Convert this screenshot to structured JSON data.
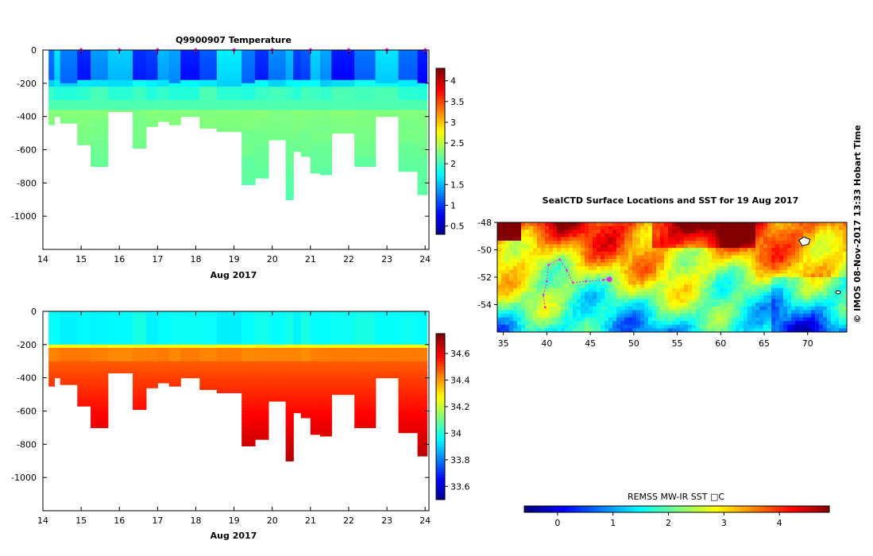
{
  "credit": "© IMOS 08-Nov-2017 13:33 Hobart Time",
  "colors": {
    "profile_marker": "#e030e0",
    "track": "#e030e0",
    "frame": "#000000",
    "background": "#ffffff"
  },
  "chart_data": [
    {
      "id": "temperature",
      "type": "heatmap",
      "title": "Q9900907  Temperature",
      "xlabel": "Aug 2017",
      "ylabel": "",
      "x_ticks": [
        "14",
        "15",
        "16",
        "17",
        "18",
        "19",
        "20",
        "21",
        "22",
        "23",
        "24"
      ],
      "y_ticks": [
        "0",
        "-200",
        "-400",
        "-600",
        "-800",
        "-1000"
      ],
      "xlim": [
        14,
        24.1
      ],
      "ylim": [
        -1200,
        0
      ],
      "profile_markers_x": [
        15,
        16,
        17,
        18,
        19,
        20,
        21,
        22,
        23,
        24
      ],
      "colorbar": {
        "ticks": [
          "0.5",
          "1",
          "1.5",
          "2",
          "2.5",
          "3",
          "3.5",
          "4"
        ],
        "range": [
          0.3,
          4.3
        ]
      },
      "profiles": [
        {
          "x0": 14.15,
          "x1": 14.3,
          "depth": 450
        },
        {
          "x0": 14.3,
          "x1": 14.45,
          "depth": 400
        },
        {
          "x0": 14.45,
          "x1": 14.9,
          "depth": 440
        },
        {
          "x0": 14.9,
          "x1": 15.25,
          "depth": 570
        },
        {
          "x0": 15.25,
          "x1": 15.7,
          "depth": 700
        },
        {
          "x0": 15.7,
          "x1": 16.35,
          "depth": 370
        },
        {
          "x0": 16.35,
          "x1": 16.7,
          "depth": 590
        },
        {
          "x0": 16.7,
          "x1": 17.0,
          "depth": 460
        },
        {
          "x0": 17.0,
          "x1": 17.3,
          "depth": 430
        },
        {
          "x0": 17.3,
          "x1": 17.6,
          "depth": 450
        },
        {
          "x0": 17.6,
          "x1": 18.1,
          "depth": 400
        },
        {
          "x0": 18.1,
          "x1": 18.55,
          "depth": 470
        },
        {
          "x0": 18.55,
          "x1": 19.2,
          "depth": 490
        },
        {
          "x0": 19.2,
          "x1": 19.55,
          "depth": 810
        },
        {
          "x0": 19.55,
          "x1": 19.9,
          "depth": 770
        },
        {
          "x0": 19.9,
          "x1": 20.35,
          "depth": 540
        },
        {
          "x0": 20.35,
          "x1": 20.55,
          "depth": 900
        },
        {
          "x0": 20.55,
          "x1": 20.75,
          "depth": 610
        },
        {
          "x0": 20.75,
          "x1": 21.0,
          "depth": 640
        },
        {
          "x0": 21.0,
          "x1": 21.25,
          "depth": 740
        },
        {
          "x0": 21.25,
          "x1": 21.55,
          "depth": 750
        },
        {
          "x0": 21.55,
          "x1": 22.15,
          "depth": 500
        },
        {
          "x0": 22.15,
          "x1": 22.7,
          "depth": 700
        },
        {
          "x0": 22.7,
          "x1": 23.3,
          "depth": 400
        },
        {
          "x0": 23.3,
          "x1": 23.8,
          "depth": 730
        },
        {
          "x0": 23.8,
          "x1": 24.05,
          "depth": 870
        }
      ]
    },
    {
      "id": "salinity",
      "type": "heatmap",
      "title": "",
      "xlabel": "Aug 2017",
      "ylabel": "",
      "x_ticks": [
        "14",
        "15",
        "16",
        "17",
        "18",
        "19",
        "20",
        "21",
        "22",
        "23",
        "24"
      ],
      "y_ticks": [
        "0",
        "-200",
        "-400",
        "-600",
        "-800",
        "-1000"
      ],
      "xlim": [
        14,
        24.1
      ],
      "ylim": [
        -1200,
        0
      ],
      "colorbar": {
        "ticks": [
          "33.6",
          "33.8",
          "34",
          "34.2",
          "34.4",
          "34.6"
        ],
        "range": [
          33.5,
          34.75
        ]
      }
    },
    {
      "id": "sst_map",
      "type": "heatmap",
      "title": "SealCTD Surface Locations and SST for 19 Aug 2017",
      "xlabel": "",
      "ylabel": "",
      "x_ticks": [
        "35",
        "40",
        "45",
        "50",
        "55",
        "60",
        "65",
        "70"
      ],
      "y_ticks": [
        "-48",
        "-50",
        "-52",
        "-54"
      ],
      "xlim": [
        34.3,
        74.5
      ],
      "ylim": [
        -56,
        -48
      ],
      "colorbar": {
        "title": "REMSS MW-IR SST □C",
        "ticks": [
          "0",
          "1",
          "2",
          "3",
          "4"
        ],
        "range": [
          -0.6,
          4.9
        ]
      },
      "track_points": [
        [
          39.8,
          -54.2
        ],
        [
          39.6,
          -53.3
        ],
        [
          40.0,
          -52.3
        ],
        [
          40.2,
          -51.1
        ],
        [
          41.5,
          -50.7
        ],
        [
          42.3,
          -51.5
        ],
        [
          43.0,
          -52.4
        ],
        [
          44.5,
          -52.3
        ],
        [
          46.5,
          -52.2
        ],
        [
          47.2,
          -52.1
        ]
      ],
      "current_location": [
        47.2,
        -52.15
      ]
    }
  ]
}
